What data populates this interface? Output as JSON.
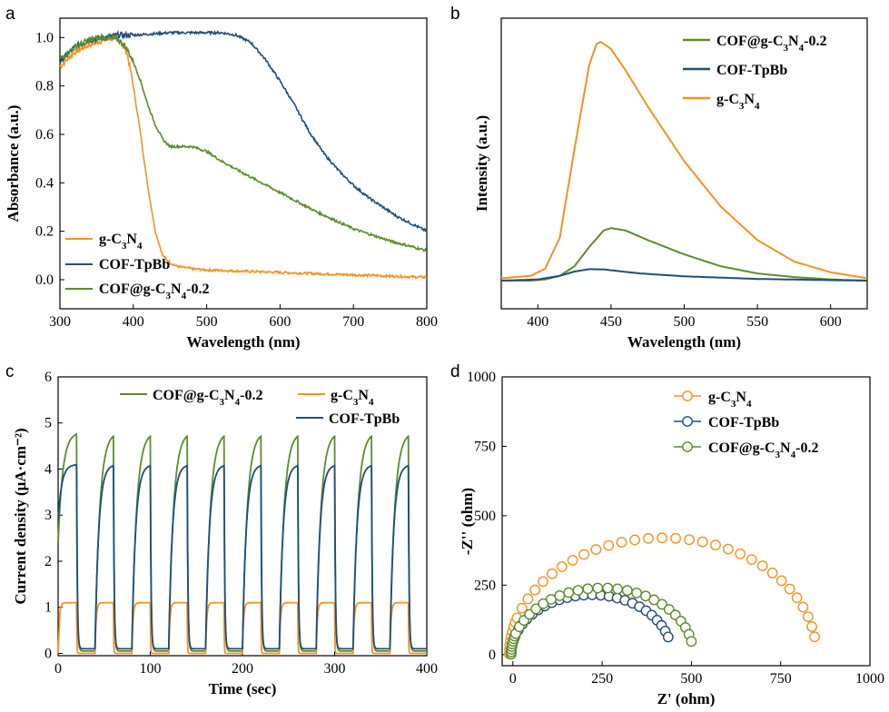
{
  "colors": {
    "g": "#f39222",
    "cof": "#1f4e79",
    "comp": "#5b8c2a"
  },
  "panels": {
    "a": "a",
    "b": "b",
    "c": "c",
    "d": "d"
  },
  "chart_data": [
    {
      "panel": "a",
      "type": "line",
      "xlabel": "Wavelength (nm)",
      "ylabel": "Absorbance (a.u.)",
      "xlim": [
        300,
        800
      ],
      "ylim": [
        -0.12,
        1.08
      ],
      "xticks": [
        "300",
        "400",
        "500",
        "600",
        "700",
        "800"
      ],
      "yticks": [
        "0.0",
        "0.2",
        "0.4",
        "0.6",
        "0.8",
        "1.0"
      ],
      "legend_position": "bottom-left",
      "series": [
        {
          "key": "g",
          "name": [
            "g-C",
            "3",
            "N",
            "4",
            ""
          ],
          "color": "#f39222",
          "x": [
            300,
            320,
            340,
            360,
            375,
            385,
            392,
            400,
            410,
            420,
            430,
            440,
            450,
            460,
            480,
            500,
            550,
            600,
            650,
            700,
            750,
            800
          ],
          "y": [
            0.88,
            0.94,
            0.97,
            0.99,
            1.0,
            0.98,
            0.93,
            0.8,
            0.6,
            0.38,
            0.2,
            0.1,
            0.07,
            0.055,
            0.045,
            0.04,
            0.035,
            0.03,
            0.025,
            0.02,
            0.015,
            0.01
          ]
        },
        {
          "key": "cof",
          "name": [
            "COF-TpBb"
          ],
          "color": "#1f4e79",
          "x": [
            300,
            320,
            340,
            360,
            380,
            400,
            450,
            500,
            520,
            540,
            560,
            580,
            600,
            620,
            640,
            660,
            680,
            700,
            720,
            740,
            760,
            780,
            800
          ],
          "y": [
            0.9,
            0.96,
            0.99,
            1.0,
            1.01,
            1.01,
            1.02,
            1.02,
            1.02,
            1.01,
            0.98,
            0.91,
            0.82,
            0.72,
            0.61,
            0.52,
            0.45,
            0.39,
            0.34,
            0.3,
            0.26,
            0.23,
            0.2
          ]
        },
        {
          "key": "comp",
          "name": [
            "COF@g-C",
            "3",
            "N",
            "4",
            "-0.2"
          ],
          "color": "#5b8c2a",
          "x": [
            300,
            320,
            340,
            360,
            380,
            390,
            400,
            410,
            420,
            430,
            440,
            450,
            460,
            480,
            500,
            520,
            550,
            600,
            650,
            700,
            750,
            800
          ],
          "y": [
            0.91,
            0.96,
            0.99,
            1.0,
            0.99,
            0.96,
            0.9,
            0.82,
            0.72,
            0.64,
            0.58,
            0.55,
            0.55,
            0.55,
            0.53,
            0.49,
            0.44,
            0.36,
            0.28,
            0.21,
            0.16,
            0.12
          ]
        }
      ]
    },
    {
      "panel": "b",
      "type": "line",
      "xlabel": "Wavelength (nm)",
      "ylabel": "Intensity (a.u.)",
      "xlim": [
        375,
        625
      ],
      "ylim": [
        0,
        1.08
      ],
      "xticks": [
        "400",
        "450",
        "500",
        "550",
        "600"
      ],
      "legend_position": "top-right",
      "series": [
        {
          "key": "comp",
          "name": [
            "COF@g-C",
            "3",
            "N",
            "4",
            "-0.2"
          ],
          "color": "#5b8c2a",
          "x": [
            375,
            395,
            405,
            415,
            425,
            435,
            445,
            450,
            460,
            475,
            500,
            525,
            550,
            575,
            600,
            625
          ],
          "y": [
            0.0,
            0.0,
            0.005,
            0.02,
            0.06,
            0.14,
            0.21,
            0.22,
            0.21,
            0.17,
            0.11,
            0.06,
            0.03,
            0.015,
            0.005,
            0.0
          ]
        },
        {
          "key": "cof",
          "name": [
            "COF-TpBb"
          ],
          "color": "#1f4e79",
          "x": [
            375,
            400,
            415,
            425,
            435,
            445,
            455,
            470,
            500,
            550,
            600,
            625
          ],
          "y": [
            0.0,
            0.005,
            0.02,
            0.038,
            0.048,
            0.047,
            0.04,
            0.03,
            0.018,
            0.007,
            0.002,
            0.0
          ]
        },
        {
          "key": "g",
          "name": [
            "g-C",
            "3",
            "N",
            "4",
            ""
          ],
          "color": "#f39222",
          "x": [
            375,
            395,
            405,
            415,
            425,
            435,
            440,
            443,
            450,
            460,
            475,
            500,
            525,
            550,
            575,
            600,
            625
          ],
          "y": [
            0.01,
            0.02,
            0.05,
            0.18,
            0.55,
            0.9,
            0.99,
            1.0,
            0.97,
            0.88,
            0.73,
            0.5,
            0.31,
            0.17,
            0.08,
            0.035,
            0.01
          ]
        }
      ]
    },
    {
      "panel": "c",
      "type": "line",
      "xlabel": "Time (sec)",
      "ylabel": "Current density (μA·cm⁻²)",
      "xlim": [
        0,
        400
      ],
      "ylim": [
        -0.05,
        6
      ],
      "xticks": [
        "0",
        "100",
        "200",
        "300",
        "400"
      ],
      "yticks": [
        "0",
        "1",
        "2",
        "3",
        "4",
        "5",
        "6"
      ],
      "legend_position": "top",
      "period_sec": 40,
      "on_sec": 20,
      "series": [
        {
          "key": "comp",
          "name": [
            "COF@g-C",
            "3",
            "N",
            "4",
            "-0.2"
          ],
          "color": "#5b8c2a",
          "on_value": 4.8,
          "off_value": 0.05
        },
        {
          "key": "g",
          "name": [
            "g-C",
            "3",
            "N",
            "4",
            ""
          ],
          "color": "#f39222",
          "on_value": 1.1,
          "off_value": 0.0
        },
        {
          "key": "cof",
          "name": [
            "COF-TpBb"
          ],
          "color": "#1f4e79",
          "on_value": 4.1,
          "off_value": 0.1
        }
      ]
    },
    {
      "panel": "d",
      "type": "scatter",
      "xlabel": "Z' (ohm)",
      "ylabel": "-Z'' (ohm)",
      "xlim": [
        -30,
        1000
      ],
      "ylim": [
        -40,
        1000
      ],
      "xticks": [
        "0",
        "250",
        "500",
        "750",
        "1000"
      ],
      "yticks": [
        "0",
        "250",
        "500",
        "750",
        "1000"
      ],
      "legend_position": "top-right",
      "series": [
        {
          "key": "g",
          "name": [
            "g-C",
            "3",
            "N",
            "4",
            ""
          ],
          "color": "#f39222",
          "arc_center": 420,
          "arc_rx": 430,
          "arc_ry": 420,
          "end_x": 845,
          "end_y": 140
        },
        {
          "key": "cof",
          "name": [
            "COF-TpBb"
          ],
          "color": "#1f4e79",
          "arc_center": 220,
          "arc_rx": 225,
          "arc_ry": 215,
          "end_x": 435,
          "end_y": 55
        },
        {
          "key": "comp",
          "name": [
            "COF@g-C",
            "3",
            "N",
            "4",
            "-0.2"
          ],
          "color": "#5b8c2a",
          "arc_center": 250,
          "arc_rx": 255,
          "arc_ry": 240,
          "end_x": 500,
          "end_y": 72
        }
      ]
    }
  ]
}
